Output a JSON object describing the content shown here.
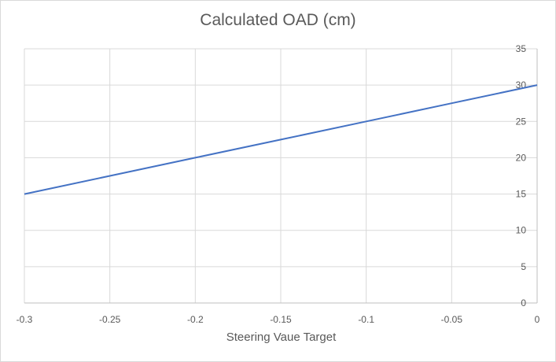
{
  "chart_data": {
    "type": "line",
    "title": "Calculated OAD (cm)",
    "xlabel": "Steering Vaue Target",
    "ylabel": "",
    "xlim": [
      -0.3,
      0
    ],
    "ylim": [
      0,
      35
    ],
    "x_ticks": [
      -0.3,
      -0.25,
      -0.2,
      -0.15,
      -0.1,
      -0.05,
      0
    ],
    "x_tick_labels": [
      "-0.3",
      "-0.25",
      "-0.2",
      "-0.15",
      "-0.1",
      "-0.05",
      "0"
    ],
    "y_ticks": [
      0,
      5,
      10,
      15,
      20,
      25,
      30,
      35
    ],
    "y_tick_labels": [
      "0",
      "5",
      "10",
      "15",
      "20",
      "25",
      "30",
      "35"
    ],
    "y_axis_side": "right",
    "grid": true,
    "legend": "none",
    "series": [
      {
        "color": "#4472c4",
        "x": [
          -0.3,
          -0.25,
          -0.2,
          -0.15,
          -0.1,
          -0.05,
          0
        ],
        "y": [
          15,
          17.5,
          20,
          22.5,
          25,
          27.5,
          30
        ]
      }
    ]
  }
}
